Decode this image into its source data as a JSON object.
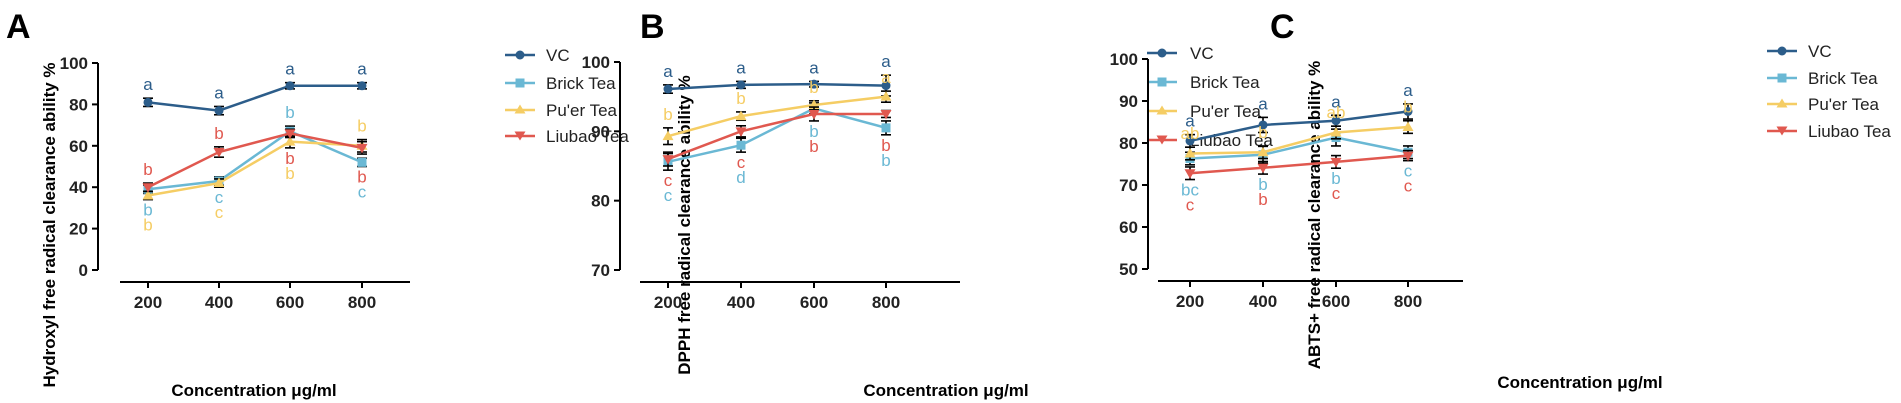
{
  "colors": {
    "VC": "#2c5d8a",
    "Brick Tea": "#6ab8d4",
    "Pu'er Tea": "#f5cd64",
    "Liubao Tea": "#e0584f"
  },
  "chart_data": [
    {
      "type": "line",
      "panel": "A",
      "xlabel": "Concentration μg/ml",
      "ylabel": "Hydroxyl free radical clearance ability %",
      "x": [
        200,
        400,
        600,
        800
      ],
      "xticks": [
        "200",
        "400",
        "600",
        "800"
      ],
      "ylim": [
        0,
        100
      ],
      "yticks": [
        "0",
        "20",
        "40",
        "60",
        "80",
        "100"
      ],
      "legend": [
        "VC",
        "Brick Tea",
        "Pu'er Tea",
        "Liubao Tea"
      ],
      "series": [
        {
          "name": "VC",
          "values": [
            81,
            77,
            89,
            89
          ],
          "errors": [
            2,
            2,
            1.5,
            1.5
          ],
          "labels": [
            "a",
            "a",
            "a",
            "a"
          ]
        },
        {
          "name": "Brick Tea",
          "values": [
            39,
            43,
            67,
            52
          ],
          "errors": [
            2,
            2,
            2.5,
            2
          ],
          "labels": [
            "b",
            "c",
            "b",
            "c"
          ]
        },
        {
          "name": "Pu'er Tea",
          "values": [
            36,
            42,
            62,
            60
          ],
          "errors": [
            2,
            2,
            3,
            3
          ],
          "labels": [
            "b",
            "c",
            "b",
            "b"
          ]
        },
        {
          "name": "Liubao Tea",
          "values": [
            40,
            57,
            66,
            59
          ],
          "errors": [
            2,
            2.5,
            2,
            3
          ],
          "labels": [
            "b",
            "b",
            "b",
            "b"
          ]
        }
      ]
    },
    {
      "type": "line",
      "panel": "B",
      "xlabel": "Concentration μg/ml",
      "ylabel": "DPPH free radical clearance ability %",
      "x": [
        200,
        400,
        600,
        800
      ],
      "xticks": [
        "200",
        "400",
        "600",
        "800"
      ],
      "ylim": [
        70,
        100
      ],
      "yticks": [
        "70",
        "80",
        "90",
        "100"
      ],
      "legend": [
        "VC",
        "Brick Tea",
        "Pu'er Tea",
        "Liubao Tea"
      ],
      "series": [
        {
          "name": "VC",
          "values": [
            96.1,
            96.7,
            96.8,
            96.6
          ],
          "errors": [
            0.6,
            0.5,
            0.4,
            1.5
          ],
          "labels": [
            "a",
            "a",
            "a",
            "a"
          ]
        },
        {
          "name": "Brick Tea",
          "values": [
            85.6,
            88,
            93.3,
            90.5
          ],
          "errors": [
            1.2,
            1,
            0.8,
            1
          ],
          "labels": [
            "c",
            "d",
            "b",
            "b"
          ]
        },
        {
          "name": "Pu'er Tea",
          "values": [
            89.3,
            92.2,
            93.8,
            95
          ],
          "errors": [
            1.2,
            0.6,
            0.6,
            0.8
          ],
          "labels": [
            "b",
            "b",
            "b",
            "a"
          ]
        },
        {
          "name": "Liubao Tea",
          "values": [
            86,
            90,
            92.5,
            92.5
          ],
          "errors": [
            1,
            0.8,
            1,
            0.5
          ],
          "labels": [
            "c",
            "c",
            "b",
            "b"
          ]
        }
      ]
    },
    {
      "type": "line",
      "panel": "C",
      "xlabel": "Concentration μg/ml",
      "ylabel": "ABTS+ free radical clearance ability %",
      "x": [
        200,
        400,
        600,
        800
      ],
      "xticks": [
        "200",
        "400",
        "600",
        "800"
      ],
      "ylim": [
        50,
        100
      ],
      "yticks": [
        "50",
        "60",
        "70",
        "80",
        "90",
        "100"
      ],
      "legend": [
        "VC",
        "Brick Tea",
        "Pu'er Tea",
        "Liubao Tea"
      ],
      "series": [
        {
          "name": "VC",
          "values": [
            80.5,
            84.3,
            85.3,
            87.5
          ],
          "errors": [
            1.5,
            1.8,
            1.3,
            1.8
          ],
          "labels": [
            "a",
            "a",
            "a",
            "a"
          ]
        },
        {
          "name": "Brick Tea",
          "values": [
            76.3,
            77.2,
            81.3,
            77.8
          ],
          "errors": [
            1.5,
            2,
            2,
            1.5
          ],
          "labels": [
            "bc",
            "b",
            "b",
            "c"
          ]
        },
        {
          "name": "Pu'er Tea",
          "values": [
            77.5,
            77.8,
            82.5,
            83.8
          ],
          "errors": [
            1.5,
            1.5,
            1.5,
            1.5
          ],
          "labels": [
            "ab",
            "b",
            "ab",
            "b"
          ]
        },
        {
          "name": "Liubao Tea",
          "values": [
            72.8,
            74.1,
            75.5,
            77
          ],
          "errors": [
            1.5,
            1.5,
            1.5,
            1.2
          ],
          "labels": [
            "c",
            "b",
            "c",
            "c"
          ]
        }
      ]
    }
  ]
}
